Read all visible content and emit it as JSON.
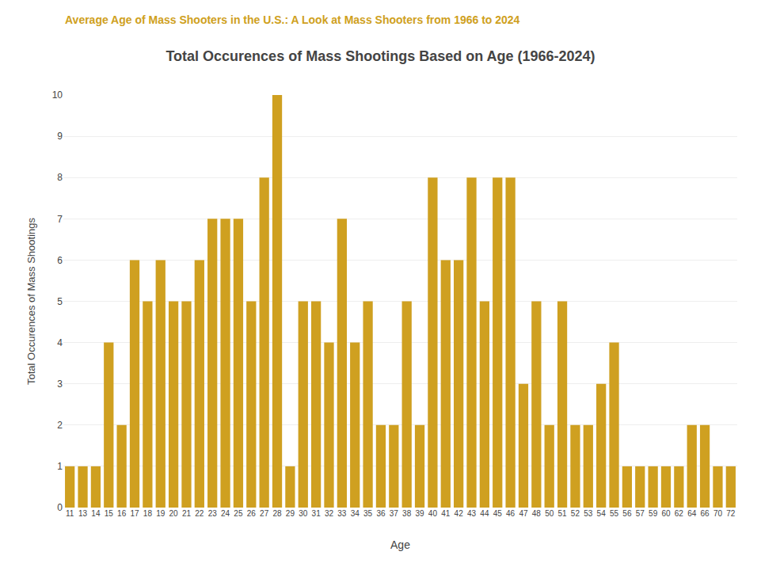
{
  "chart_data": {
    "type": "bar",
    "title": "Total Occurences of Mass Shootings Based on Age (1966-2024)",
    "subtitle": "Average Age of Mass Shooters in the U.S.: A Look at Mass Shooters from 1966 to 2024",
    "x_label": "Age",
    "y_label": "Total Occurences of Mass Shootings",
    "categories": [
      "11",
      "13",
      "14",
      "15",
      "16",
      "17",
      "18",
      "19",
      "20",
      "21",
      "22",
      "23",
      "24",
      "25",
      "26",
      "27",
      "28",
      "29",
      "30",
      "31",
      "32",
      "33",
      "34",
      "35",
      "36",
      "37",
      "38",
      "39",
      "40",
      "41",
      "42",
      "43",
      "44",
      "45",
      "46",
      "47",
      "48",
      "50",
      "51",
      "52",
      "53",
      "54",
      "55",
      "56",
      "57",
      "59",
      "60",
      "62",
      "64",
      "66",
      "70",
      "72"
    ],
    "values": [
      1,
      1,
      1,
      4,
      2,
      6,
      5,
      6,
      5,
      5,
      6,
      7,
      7,
      7,
      5,
      8,
      10,
      1,
      5,
      5,
      4,
      7,
      4,
      5,
      2,
      2,
      5,
      2,
      8,
      6,
      6,
      8,
      5,
      8,
      8,
      3,
      5,
      2,
      5,
      2,
      2,
      3,
      4,
      1,
      1,
      1,
      1,
      1,
      2,
      2,
      1,
      1
    ],
    "color": "#CFA020",
    "ylim": [
      0,
      10
    ],
    "yticks": [
      0,
      1,
      2,
      3,
      4,
      5,
      6,
      7,
      8,
      9,
      10
    ],
    "grid": true
  }
}
